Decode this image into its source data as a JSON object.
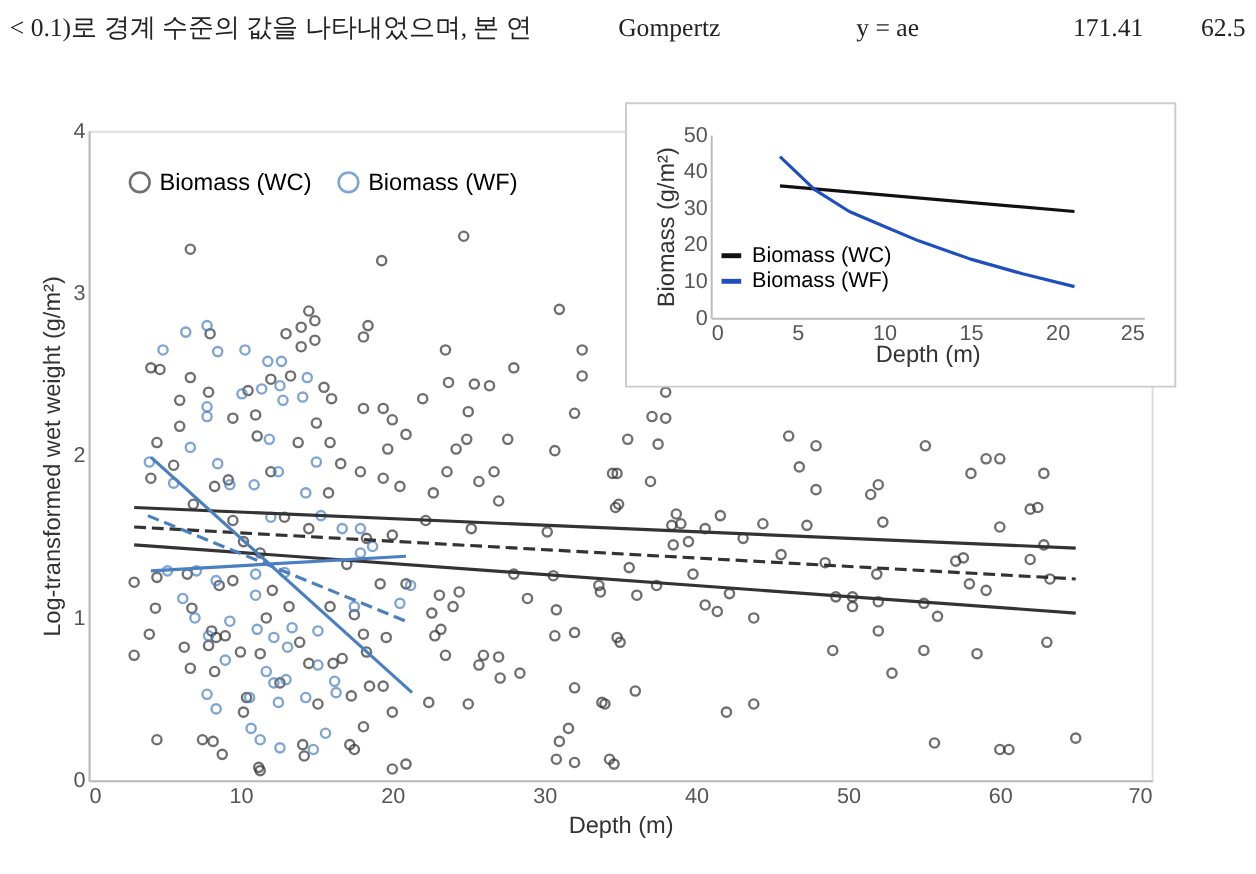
{
  "chart_data": [
    {
      "type": "scatter",
      "xlabel": "Depth (m)",
      "ylabel": "Log-transformed wet weight (g/m²)",
      "annotations": [
        "< 0.1)로 경계 수준의 값을 나타내었으며, 본 연",
        "Gompertz",
        "y = ae",
        "171.41",
        "62.5"
      ],
      "xlim": [
        0,
        70
      ],
      "xticks": [
        0,
        10,
        20,
        30,
        40,
        50,
        60,
        70
      ],
      "ylim": [
        0,
        4
      ],
      "yticks": [
        0,
        1,
        2,
        3,
        4
      ],
      "grid": false,
      "legend": "top left",
      "marker": "circle",
      "series": [
        {
          "name": "Biomass (WC)",
          "color": "#333333",
          "type": "scatter",
          "x": [
            6.7,
            24.7,
            19.3,
            31.0,
            32.5,
            32.5,
            32,
            30.7,
            28,
            23.5,
            23.7,
            25.4,
            26.4,
            25,
            24.9,
            24.2,
            23.6,
            27.6,
            22,
            20.9,
            20,
            19.4,
            18.1,
            18.1,
            18.4,
            14.5,
            14.9,
            14,
            14.9,
            13,
            14,
            8,
            4.1,
            4.7,
            6.7,
            6,
            6,
            4.5,
            5.6,
            4.1,
            7.9,
            10.5,
            12,
            11,
            11.1,
            9.5,
            13.3,
            15.5,
            16,
            15,
            13.8,
            15.9,
            16.6,
            17.9,
            19.4,
            19.7,
            20.5,
            22.7,
            25.7,
            26.7,
            34.8,
            12,
            9.2,
            8.3,
            3,
            3,
            4,
            4.4,
            4.5,
            4.5,
            6.5,
            6.3,
            6.7,
            6.8,
            7.5,
            8.2,
            8.8,
            7.9,
            8.4,
            9,
            8.1,
            8.3,
            9.5,
            10,
            10.4,
            10.2,
            11.2,
            11.3,
            11.3,
            11.7,
            12.1,
            13.2,
            12.6,
            13.9,
            14.1,
            14.2,
            14.5,
            15.1,
            15.9,
            16.1,
            16.7,
            17.2,
            17.5,
            17.3,
            17.5,
            18.1,
            18.1,
            18.3,
            18.5,
            19.2,
            19.4,
            19.6,
            20,
            20,
            20.9,
            22.6,
            22.4,
            22.8,
            23.2,
            23.1,
            23.5,
            24,
            24.4,
            25,
            25.7,
            26,
            27,
            27.1,
            28.4,
            28.9,
            28,
            30.6,
            30.8,
            30.7,
            32,
            32,
            31.6,
            31,
            30.8,
            32,
            34,
            34.6,
            33.7,
            35,
            38,
            37.1,
            38,
            37.5,
            37,
            35.5,
            34.5,
            34.7,
            38.7,
            38.4,
            39,
            39.5,
            40.6,
            41.6,
            43.1,
            44.4,
            38.5,
            35.6,
            33.6,
            37.4,
            36.1,
            39.8,
            40.6,
            41.4,
            42.2,
            43.8,
            34.8,
            33.8,
            36,
            34.3,
            42,
            43.8,
            46.1,
            46.8,
            47.9,
            47.9,
            47.3,
            45.6,
            48.5,
            49.2,
            50.3,
            50.3,
            49,
            51.5,
            52,
            52.3,
            51.9,
            52,
            52,
            52.9,
            55.1,
            55,
            55,
            55.9,
            55.7,
            57.1,
            57.6,
            58.1,
            59.1,
            60,
            60,
            58,
            59.1,
            58.5,
            60,
            60.6,
            62,
            62.5,
            62.9,
            62,
            62.9,
            63.3,
            63.1,
            65,
            6.9,
            9.5,
            10.2,
            11.3,
            12.9,
            14.5,
            15.8,
            18.3,
            20,
            22.2,
            25.2,
            27,
            30.2,
            34.9,
            17,
            20.9,
            8.6
          ],
          "values": [
            3.27,
            3.35,
            3.2,
            2.9,
            2.65,
            2.49,
            2.26,
            2.03,
            2.54,
            2.65,
            2.45,
            2.44,
            2.43,
            2.27,
            2.1,
            2.04,
            1.9,
            2.1,
            2.35,
            2.13,
            2.22,
            2.29,
            2.29,
            2.73,
            2.8,
            2.89,
            2.83,
            2.79,
            2.71,
            2.75,
            2.67,
            2.75,
            2.54,
            2.53,
            2.48,
            2.34,
            2.18,
            2.08,
            1.94,
            1.86,
            2.39,
            2.4,
            2.47,
            2.25,
            2.12,
            2.23,
            2.49,
            2.42,
            2.35,
            2.2,
            2.08,
            2.08,
            1.95,
            1.9,
            1.86,
            2.04,
            1.81,
            1.77,
            1.84,
            1.9,
            1.89,
            1.9,
            1.85,
            1.81,
            1.22,
            0.77,
            0.9,
            1.06,
            0.25,
            1.25,
            1.27,
            0.82,
            0.69,
            1.06,
            0.25,
            0.24,
            0.16,
            0.83,
            0.88,
            0.89,
            0.92,
            0.67,
            1.23,
            0.79,
            0.51,
            0.42,
            0.08,
            0.06,
            0.78,
            1,
            1.17,
            1.07,
            0.6,
            0.85,
            0.22,
            0.15,
            0.72,
            0.47,
            1.07,
            0.72,
            0.75,
            0.22,
            0.19,
            0.52,
            1.02,
            0.9,
            0.33,
            0.79,
            0.58,
            1.21,
            0.58,
            0.88,
            0.42,
            0.07,
            0.1,
            1.03,
            0.48,
            0.89,
            0.93,
            1.14,
            0.77,
            1.07,
            1.16,
            0.47,
            0.71,
            0.77,
            0.76,
            0.63,
            0.66,
            1.12,
            1.27,
            1.26,
            1.05,
            0.89,
            0.91,
            0.57,
            0.32,
            0.24,
            0.13,
            0.11,
            0.47,
            0.1,
            1.16,
            0.85,
            2.39,
            2.24,
            2.23,
            2.07,
            1.84,
            2.1,
            1.89,
            1.68,
            1.64,
            1.57,
            1.58,
            1.47,
            1.55,
            1.63,
            1.49,
            1.58,
            1.45,
            1.31,
            1.2,
            1.2,
            1.14,
            1.27,
            1.08,
            1.04,
            1.15,
            1,
            0.88,
            0.48,
            0.55,
            0.13,
            0.42,
            0.47,
            2.12,
            1.93,
            2.06,
            1.79,
            1.57,
            1.39,
            1.34,
            1.13,
            1.13,
            1.07,
            0.8,
            1.76,
            1.82,
            1.59,
            1.27,
            1.1,
            0.92,
            0.66,
            2.06,
            1.09,
            0.8,
            1.01,
            0.23,
            1.35,
            1.37,
            1.89,
            1.98,
            1.98,
            1.56,
            1.21,
            1.17,
            0.78,
            0.19,
            0.19,
            1.67,
            1.68,
            1.89,
            1.36,
            1.45,
            1.24,
            0.85,
            0.26,
            1.7,
            1.6,
            1.47,
            1.4,
            1.62,
            1.55,
            1.77,
            1.49,
            1.51,
            1.6,
            1.55,
            1.72,
            1.53,
            1.7,
            1.33,
            1.21,
            1.2
          ]
        },
        {
          "name": "Biomass (WF)",
          "color": "#4a7fc1",
          "type": "scatter",
          "x": [
            4.9,
            6.4,
            7.8,
            8.5,
            10.3,
            11.8,
            12.7,
            11.4,
            12.6,
            12.8,
            14.4,
            14.1,
            10.1,
            7.8,
            7.8,
            11.9,
            6.7,
            4,
            8.5,
            15,
            12.5,
            5.6,
            9.3,
            10.9,
            5.2,
            6.2,
            7,
            7.1,
            8.4,
            9.3,
            7.9,
            9,
            7.8,
            8.4,
            10.6,
            10.7,
            11.3,
            11.1,
            11,
            11,
            12,
            12.9,
            12.2,
            11.7,
            12.2,
            13,
            12.5,
            13.1,
            13.4,
            12.6,
            14.3,
            14.8,
            15.1,
            15.1,
            15.6,
            16.2,
            16.3,
            16.7,
            17.5,
            17.9,
            18.7,
            20.5,
            21.2,
            15.3,
            14.3,
            17.9
          ],
          "values": [
            2.65,
            2.76,
            2.8,
            2.64,
            2.65,
            2.58,
            2.58,
            2.41,
            2.43,
            2.34,
            2.48,
            2.36,
            2.38,
            2.3,
            2.24,
            2.1,
            2.05,
            1.96,
            1.95,
            1.96,
            1.9,
            1.83,
            1.82,
            1.82,
            1.29,
            1.12,
            1,
            1.29,
            1.23,
            0.98,
            0.89,
            0.74,
            0.53,
            0.44,
            0.51,
            0.32,
            0.25,
            0.93,
            1.27,
            1.14,
            1.62,
            1.28,
            0.88,
            0.67,
            0.6,
            0.62,
            0.48,
            0.82,
            0.94,
            0.2,
            0.51,
            0.19,
            0.92,
            0.71,
            0.29,
            0.61,
            0.54,
            1.55,
            1.07,
            1.55,
            1.44,
            1.09,
            1.2,
            1.63,
            1.77,
            1.4
          ]
        },
        {
          "type": "line",
          "marker": "none",
          "color": "#333333",
          "line_style": "solid",
          "x": [
            3,
            65
          ],
          "values": [
            1.68,
            1.43
          ]
        },
        {
          "type": "line",
          "marker": "none",
          "color": "#333333",
          "line_style": "dashed",
          "x": [
            3,
            65
          ],
          "values": [
            1.56,
            1.24
          ]
        },
        {
          "type": "line",
          "marker": "none",
          "color": "#333333",
          "line_style": "solid",
          "x": [
            3,
            65
          ],
          "values": [
            1.45,
            1.03
          ]
        },
        {
          "type": "line",
          "marker": "none",
          "color": "#4a7fc1",
          "line_style": "solid",
          "x": [
            4.1,
            20.9
          ],
          "values": [
            1.29,
            1.38
          ]
        },
        {
          "type": "line",
          "marker": "none",
          "color": "#4a7fc1",
          "line_style": "dashed",
          "x": [
            3.9,
            20.9
          ],
          "values": [
            1.63,
            0.98
          ]
        },
        {
          "type": "line",
          "marker": "none",
          "color": "#4a7fc1",
          "line_style": "solid",
          "x": [
            4.1,
            21.3
          ],
          "values": [
            1.99,
            0.54
          ]
        }
      ]
    },
    {
      "type": "line",
      "xlabel": "Depth (m)",
      "ylabel": "Biomass (g/m²)",
      "xlim": [
        0,
        25
      ],
      "xticks": [
        0,
        5,
        10,
        15,
        20,
        25
      ],
      "ylim": [
        0,
        50
      ],
      "yticks": [
        0,
        10,
        20,
        30,
        40,
        50
      ],
      "grid": false,
      "legend": "bottom left",
      "marker": "none",
      "series": [
        {
          "name": "Biomass (WC)",
          "color": "#111111",
          "x": [
            4,
            21
          ],
          "values": [
            36,
            29
          ]
        },
        {
          "name": "Biomass (WF)",
          "color": "#1f4fbf",
          "x": [
            4,
            6,
            8,
            10,
            12,
            15,
            18,
            21
          ],
          "values": [
            44,
            35,
            29,
            25,
            21,
            16,
            12,
            8.5
          ]
        }
      ]
    }
  ]
}
